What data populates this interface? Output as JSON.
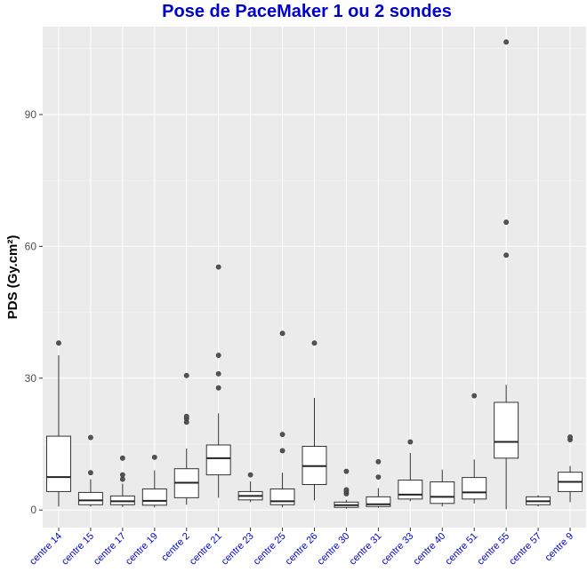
{
  "chart_data": {
    "type": "boxplot",
    "title": "Pose de PaceMaker 1 ou 2 sondes",
    "xlabel": "",
    "ylabel": "PDS (Gy.cm²)",
    "ylim": [
      -4,
      110
    ],
    "yticks": [
      0,
      30,
      60,
      90
    ],
    "grid": true,
    "legend": "none",
    "colors": {
      "title": "#0000cc",
      "x_tick_labels": "#0000cc",
      "panel_background": "#ebebeb",
      "box_fill": "#ffffff",
      "box_stroke": "#333333",
      "outlier": "#555555"
    },
    "categories": [
      "centre 14",
      "centre 15",
      "centre 17",
      "centre 19",
      "centre 2",
      "centre 21",
      "centre 23",
      "centre 25",
      "centre 26",
      "centre 30",
      "centre 31",
      "centre 33",
      "centre 40",
      "centre 51",
      "centre 55",
      "centre 57",
      "centre 9"
    ],
    "boxes": [
      {
        "category": "centre 14",
        "whisker_low": 0.8,
        "q1": 4.2,
        "median": 7.5,
        "q3": 16.8,
        "whisker_high": 35.2,
        "outliers": [
          38.0
        ]
      },
      {
        "category": "centre 15",
        "whisker_low": 0.8,
        "q1": 1.2,
        "median": 2.2,
        "q3": 4.0,
        "whisker_high": 7.0,
        "outliers": [
          8.5,
          16.5
        ]
      },
      {
        "category": "centre 17",
        "whisker_low": 0.7,
        "q1": 1.2,
        "median": 2.0,
        "q3": 3.2,
        "whisker_high": 6.0,
        "outliers": [
          7.0,
          8.0,
          11.8
        ]
      },
      {
        "category": "centre 19",
        "whisker_low": 0.6,
        "q1": 1.1,
        "median": 2.1,
        "q3": 4.8,
        "whisker_high": 9.0,
        "outliers": [
          12.0
        ]
      },
      {
        "category": "centre 2",
        "whisker_low": 1.2,
        "q1": 2.8,
        "median": 6.2,
        "q3": 9.4,
        "whisker_high": 14.0,
        "outliers": [
          20.0,
          20.8,
          21.3,
          30.6
        ]
      },
      {
        "category": "centre 21",
        "whisker_low": 2.8,
        "q1": 8.0,
        "median": 11.8,
        "q3": 14.8,
        "whisker_high": 22.0,
        "outliers": [
          27.8,
          31.0,
          35.2,
          55.3
        ]
      },
      {
        "category": "centre 23",
        "whisker_low": 1.8,
        "q1": 2.3,
        "median": 3.2,
        "q3": 4.2,
        "whisker_high": 6.5,
        "outliers": [
          8.0
        ]
      },
      {
        "category": "centre 25",
        "whisker_low": 0.6,
        "q1": 1.2,
        "median": 2.0,
        "q3": 4.8,
        "whisker_high": 8.5,
        "outliers": [
          13.5,
          17.2,
          40.2
        ]
      },
      {
        "category": "centre 26",
        "whisker_low": 2.2,
        "q1": 5.8,
        "median": 10.0,
        "q3": 14.5,
        "whisker_high": 25.5,
        "outliers": [
          38.0
        ]
      },
      {
        "category": "centre 30",
        "whisker_low": 0.3,
        "q1": 0.6,
        "median": 1.1,
        "q3": 1.8,
        "whisker_high": 2.3,
        "outliers": [
          3.7,
          4.2,
          4.6,
          8.8
        ]
      },
      {
        "category": "centre 31",
        "whisker_low": 0.5,
        "q1": 0.8,
        "median": 1.3,
        "q3": 3.0,
        "whisker_high": 5.0,
        "outliers": [
          7.5,
          11.0
        ]
      },
      {
        "category": "centre 33",
        "whisker_low": 2.0,
        "q1": 2.5,
        "median": 3.5,
        "q3": 6.8,
        "whisker_high": 13.0,
        "outliers": [
          15.5
        ]
      },
      {
        "category": "centre 40",
        "whisker_low": 0.8,
        "q1": 1.5,
        "median": 3.0,
        "q3": 6.4,
        "whisker_high": 9.2,
        "outliers": []
      },
      {
        "category": "centre 51",
        "whisker_low": 1.5,
        "q1": 2.5,
        "median": 4.0,
        "q3": 7.4,
        "whisker_high": 11.5,
        "outliers": [
          26.0
        ]
      },
      {
        "category": "centre 55",
        "whisker_low": 0.2,
        "q1": 11.8,
        "median": 15.5,
        "q3": 24.5,
        "whisker_high": 28.5,
        "outliers": [
          58.0,
          65.5,
          106.5
        ]
      },
      {
        "category": "centre 57",
        "whisker_low": 0.8,
        "q1": 1.2,
        "median": 2.0,
        "q3": 3.0,
        "whisker_high": 3.4,
        "outliers": []
      },
      {
        "category": "centre 9",
        "whisker_low": 1.8,
        "q1": 4.2,
        "median": 6.4,
        "q3": 8.6,
        "whisker_high": 10.0,
        "outliers": [
          16.0,
          16.6
        ]
      }
    ]
  }
}
